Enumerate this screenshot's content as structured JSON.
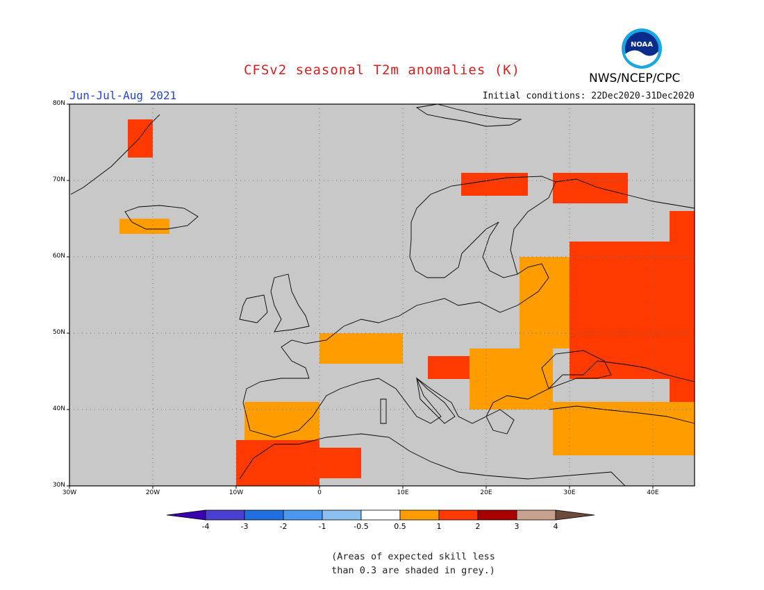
{
  "title": "CFSv2 seasonal T2m anomalies (K)",
  "season": "Jun-Jul-Aug 2021",
  "initial_conditions": "Initial conditions: 22Dec2020-31Dec2020",
  "agency": "NWS/NCEP/CPC",
  "logo": {
    "name": "noaa-logo",
    "text": "NOAA"
  },
  "map": {
    "projection": "lat-lon",
    "lon_range": [
      -30,
      45
    ],
    "lat_range": [
      30,
      80
    ],
    "lat_ticks": [
      "80N",
      "70N",
      "60N",
      "50N",
      "40N",
      "30N"
    ],
    "lon_ticks": [
      "30W",
      "20W",
      "10W",
      "0",
      "10E",
      "20E",
      "30E",
      "40E"
    ],
    "background_color": "#c8c8c8",
    "grid": "dotted"
  },
  "colorbar": {
    "labels": [
      "-4",
      "-3",
      "-2",
      "-1",
      "-0.5",
      "0.5",
      "1",
      "2",
      "3",
      "4"
    ],
    "colors": [
      "#3a00b0",
      "#4a3fd0",
      "#1f6fe0",
      "#4a98f0",
      "#8cc0f0",
      "#ffffff",
      "#ff9d00",
      "#ff3a00",
      "#a80000",
      "#c8a090",
      "#6e4a3c"
    ]
  },
  "note_lines": [
    "(Areas of expected skill less",
    "than 0.3 are shaded in grey.)"
  ],
  "anomaly_regions": [
    {
      "lon": [
        42,
        45
      ],
      "lat": [
        38,
        66
      ],
      "level": "1-2"
    },
    {
      "lon": [
        30,
        42
      ],
      "lat": [
        44,
        62
      ],
      "level": "1-2"
    },
    {
      "lon": [
        24,
        30
      ],
      "lat": [
        48,
        60
      ],
      "level": "0.5-1"
    },
    {
      "lon": [
        17,
        25
      ],
      "lat": [
        68,
        71
      ],
      "level": "1-2"
    },
    {
      "lon": [
        28,
        37
      ],
      "lat": [
        67,
        71
      ],
      "level": "1-2"
    },
    {
      "lon": [
        13,
        20
      ],
      "lat": [
        44,
        47
      ],
      "level": "1-2"
    },
    {
      "lon": [
        28,
        45
      ],
      "lat": [
        34,
        41
      ],
      "level": "0.5-1"
    },
    {
      "lon": [
        -10,
        0
      ],
      "lat": [
        30,
        36
      ],
      "level": "1-2"
    },
    {
      "lon": [
        0,
        5
      ],
      "lat": [
        31,
        35
      ],
      "level": "1-2"
    },
    {
      "lon": [
        -23,
        -20
      ],
      "lat": [
        73,
        78
      ],
      "level": "1-2"
    },
    {
      "lon": [
        -9,
        0
      ],
      "lat": [
        36,
        41
      ],
      "level": "0.5-1"
    },
    {
      "lon": [
        0,
        10
      ],
      "lat": [
        46,
        50
      ],
      "level": "0.5-1"
    },
    {
      "lon": [
        18,
        28
      ],
      "lat": [
        40,
        48
      ],
      "level": "0.5-1"
    },
    {
      "lon": [
        -24,
        -18
      ],
      "lat": [
        63,
        65
      ],
      "level": "0.5-1"
    }
  ]
}
